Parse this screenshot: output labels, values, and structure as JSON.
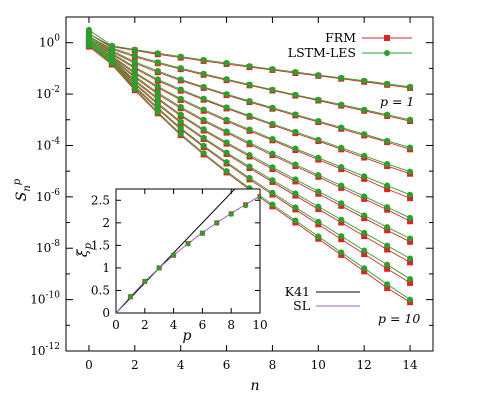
{
  "chart_data": [
    {
      "type": "line",
      "xlabel_base": "n",
      "ylabel_base": "S",
      "ylabel_sub": "n",
      "ylabel_sup": "p",
      "xlim": [
        -1,
        15
      ],
      "ylim_log10": [
        -12,
        1
      ],
      "y_scale": "log",
      "x_ticks": [
        0,
        2,
        4,
        6,
        8,
        10,
        12,
        14
      ],
      "y_tick_exponents": [
        0,
        -2,
        -4,
        -6,
        -8,
        -10,
        -12
      ],
      "y_tick_base": "10",
      "annotation_top": "p = 1",
      "annotation_bottom": "p = 10",
      "legend_position": "top-right",
      "n": [
        0,
        1,
        2,
        3,
        4,
        5,
        6,
        7,
        8,
        9,
        10,
        11,
        12,
        13,
        14
      ],
      "series": [
        {
          "name": "FRM",
          "color": "#d62728",
          "marker": "square",
          "log10_values": {
            "p1": [
              0.35,
              -0.15,
              -0.3,
              -0.45,
              -0.58,
              -0.71,
              -0.83,
              -0.95,
              -1.06,
              -1.18,
              -1.29,
              -1.4,
              -1.52,
              -1.64,
              -1.76
            ],
            "p2": [
              0.25,
              -0.25,
              -0.55,
              -0.8,
              -1.03,
              -1.25,
              -1.46,
              -1.66,
              -1.86,
              -2.06,
              -2.25,
              -2.45,
              -2.65,
              -2.85,
              -3.05
            ],
            "p3": [
              0.2,
              -0.35,
              -0.8,
              -1.15,
              -1.47,
              -1.76,
              -2.04,
              -2.31,
              -2.57,
              -2.83,
              -3.09,
              -3.35,
              -3.61,
              -3.87,
              -4.15
            ],
            "p4": [
              0.15,
              -0.45,
              -1.0,
              -1.48,
              -1.87,
              -2.22,
              -2.56,
              -2.88,
              -3.2,
              -3.52,
              -3.83,
              -4.15,
              -4.47,
              -4.8,
              -5.1
            ],
            "p5": [
              0.1,
              -0.55,
              -1.2,
              -1.75,
              -2.23,
              -2.65,
              -3.05,
              -3.43,
              -3.8,
              -4.18,
              -4.55,
              -4.92,
              -5.3,
              -5.7,
              -6.05
            ],
            "p6": [
              0.05,
              -0.62,
              -1.35,
              -2.0,
              -2.55,
              -3.05,
              -3.5,
              -3.95,
              -4.38,
              -4.8,
              -5.22,
              -5.65,
              -6.08,
              -6.5,
              -6.95
            ],
            "p7": [
              0.0,
              -0.7,
              -1.5,
              -2.2,
              -2.85,
              -3.42,
              -3.93,
              -4.43,
              -4.92,
              -5.4,
              -5.88,
              -6.35,
              -6.83,
              -7.3,
              -7.75
            ],
            "p8": [
              -0.05,
              -0.75,
              -1.62,
              -2.4,
              -3.12,
              -3.75,
              -4.33,
              -4.88,
              -5.42,
              -5.95,
              -6.48,
              -7.0,
              -7.53,
              -8.05,
              -8.55
            ],
            "p9": [
              -0.1,
              -0.8,
              -1.75,
              -2.58,
              -3.37,
              -4.06,
              -4.7,
              -5.32,
              -5.91,
              -6.49,
              -7.07,
              -7.65,
              -8.23,
              -8.8,
              -9.35
            ],
            "p10": [
              -0.15,
              -0.85,
              -1.85,
              -2.75,
              -3.6,
              -4.35,
              -5.05,
              -5.72,
              -6.37,
              -7.0,
              -7.63,
              -8.26,
              -8.9,
              -9.55,
              -10.1
            ]
          }
        },
        {
          "name": "LSTM-LES",
          "color": "#2ca02c",
          "marker": "circle",
          "log10_values": {
            "p1": [
              0.5,
              -0.12,
              -0.27,
              -0.41,
              -0.54,
              -0.67,
              -0.79,
              -0.91,
              -1.03,
              -1.14,
              -1.26,
              -1.37,
              -1.48,
              -1.6,
              -1.72
            ],
            "p2": [
              0.35,
              -0.2,
              -0.5,
              -0.76,
              -0.99,
              -1.21,
              -1.42,
              -1.63,
              -1.83,
              -2.03,
              -2.22,
              -2.41,
              -2.61,
              -2.8,
              -3.0
            ],
            "p3": [
              0.25,
              -0.3,
              -0.75,
              -1.1,
              -1.43,
              -1.72,
              -2.0,
              -2.27,
              -2.53,
              -2.79,
              -3.05,
              -3.3,
              -3.56,
              -3.82,
              -4.08
            ],
            "p4": [
              0.2,
              -0.4,
              -0.95,
              -1.43,
              -1.82,
              -2.18,
              -2.52,
              -2.84,
              -3.16,
              -3.47,
              -3.78,
              -4.09,
              -4.4,
              -4.72,
              -5.02
            ],
            "p5": [
              0.15,
              -0.5,
              -1.15,
              -1.7,
              -2.18,
              -2.6,
              -3.0,
              -3.38,
              -3.75,
              -4.12,
              -4.48,
              -4.84,
              -5.2,
              -5.56,
              -5.92
            ],
            "p6": [
              0.1,
              -0.57,
              -1.3,
              -1.95,
              -2.5,
              -3.0,
              -3.45,
              -3.89,
              -4.32,
              -4.74,
              -5.15,
              -5.56,
              -5.98,
              -6.4,
              -6.82
            ],
            "p7": [
              0.05,
              -0.65,
              -1.45,
              -2.15,
              -2.8,
              -3.37,
              -3.88,
              -4.37,
              -4.85,
              -5.32,
              -5.79,
              -6.25,
              -6.72,
              -7.18,
              -7.62
            ],
            "p8": [
              0.0,
              -0.7,
              -1.57,
              -2.35,
              -3.07,
              -3.7,
              -4.28,
              -4.82,
              -5.35,
              -5.87,
              -6.38,
              -6.89,
              -7.4,
              -7.9,
              -8.4
            ],
            "p9": [
              -0.05,
              -0.75,
              -1.7,
              -2.53,
              -3.32,
              -4.01,
              -4.65,
              -5.26,
              -5.84,
              -6.41,
              -6.97,
              -7.53,
              -8.09,
              -8.64,
              -9.2
            ],
            "p10": [
              -0.1,
              -0.8,
              -1.8,
              -2.7,
              -3.55,
              -4.3,
              -5.0,
              -5.66,
              -6.3,
              -6.92,
              -7.54,
              -8.16,
              -8.78,
              -9.4,
              -10.0
            ]
          }
        }
      ]
    },
    {
      "type": "line",
      "inset": true,
      "xlabel": "p",
      "ylabel": "ξ",
      "ylabel_sub": "p",
      "xlim": [
        0,
        10
      ],
      "ylim": [
        0,
        2.75
      ],
      "x_ticks": [
        0,
        2,
        4,
        6,
        8,
        10
      ],
      "y_ticks": [
        0,
        0.5,
        1,
        1.5,
        2,
        2.5
      ],
      "y_tick_labels": [
        "0",
        "0.5",
        "1",
        "1.5",
        "2",
        "2.5"
      ],
      "legend_position": "bottom-right, outside inset",
      "series": [
        {
          "name": "K41",
          "color": "#000000",
          "kind": "line",
          "x": [
            0,
            10
          ],
          "y": [
            0,
            3.333
          ]
        },
        {
          "name": "SL",
          "color": "#9467bd",
          "kind": "line",
          "x": [
            0,
            1,
            2,
            3,
            4,
            5,
            6,
            7,
            8,
            9,
            10
          ],
          "y": [
            0,
            0.364,
            0.696,
            1.0,
            1.28,
            1.538,
            1.778,
            2.001,
            2.211,
            2.407,
            2.593
          ]
        },
        {
          "name": "FRM",
          "color": "#d62728",
          "kind": "marker",
          "x": [
            1,
            2,
            3,
            4,
            5,
            6,
            7,
            8,
            9,
            10
          ],
          "y": [
            0.36,
            0.7,
            1.0,
            1.28,
            1.54,
            1.77,
            2.0,
            2.2,
            2.4,
            2.58
          ]
        },
        {
          "name": "LSTM-LES",
          "color": "#2ca02c",
          "kind": "marker",
          "x": [
            1,
            2,
            3,
            4,
            5,
            6,
            7,
            8,
            9,
            10
          ],
          "y": [
            0.37,
            0.7,
            1.0,
            1.28,
            1.53,
            1.77,
            1.99,
            2.19,
            2.38,
            2.56
          ]
        }
      ]
    }
  ]
}
